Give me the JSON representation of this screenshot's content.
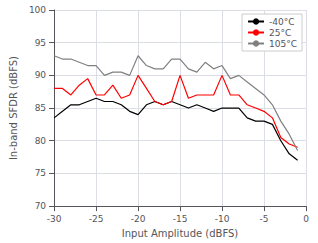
{
  "chart_data": {
    "type": "line",
    "xlabel": "Input Amplitude (dBFS)",
    "ylabel": "In-band SFDR (dBFS)",
    "x": [
      -30,
      -29,
      -28,
      -27,
      -26,
      -25,
      -24,
      -23,
      -22,
      -21,
      -20,
      -19,
      -18,
      -17,
      -16,
      -15,
      -14,
      -13,
      -12,
      -11,
      -10,
      -9,
      -8,
      -7,
      -6,
      -5,
      -4,
      -3,
      -2,
      -1
    ],
    "series": [
      {
        "name": "-40°C",
        "color": "#000000",
        "values": [
          83.5,
          84.5,
          85.5,
          85.5,
          86.0,
          86.5,
          86.0,
          86.0,
          85.5,
          84.5,
          84.0,
          85.5,
          86.0,
          85.5,
          86.0,
          85.5,
          85.0,
          85.5,
          85.0,
          84.5,
          85.0,
          85.0,
          85.0,
          83.5,
          83.0,
          83.0,
          82.5,
          80.0,
          78.0,
          77.0
        ]
      },
      {
        "name": "25°C",
        "color": "#ff0000",
        "values": [
          88.0,
          88.0,
          87.0,
          88.5,
          89.5,
          87.0,
          87.0,
          88.5,
          86.5,
          87.0,
          90.0,
          88.0,
          86.0,
          85.5,
          86.0,
          90.0,
          86.5,
          87.0,
          87.0,
          87.0,
          90.0,
          87.0,
          87.0,
          85.5,
          85.0,
          84.5,
          83.5,
          80.5,
          79.5,
          79.0
        ]
      },
      {
        "name": "105°C",
        "color": "#808080",
        "values": [
          93.0,
          92.5,
          92.5,
          92.0,
          91.5,
          91.5,
          90.0,
          90.5,
          90.5,
          90.0,
          93.0,
          91.5,
          91.0,
          91.0,
          92.5,
          92.5,
          91.0,
          90.5,
          92.0,
          91.0,
          91.5,
          89.5,
          90.0,
          89.0,
          88.0,
          87.0,
          85.5,
          83.0,
          81.0,
          78.5
        ]
      }
    ],
    "xlim": [
      -30,
      0
    ],
    "ylim": [
      70,
      100
    ],
    "xticks": [
      -30,
      -25,
      -20,
      -15,
      -10,
      -5,
      0
    ],
    "yticks": [
      70,
      75,
      80,
      85,
      90,
      95,
      100
    ],
    "grid": true,
    "legend": "upper right"
  }
}
